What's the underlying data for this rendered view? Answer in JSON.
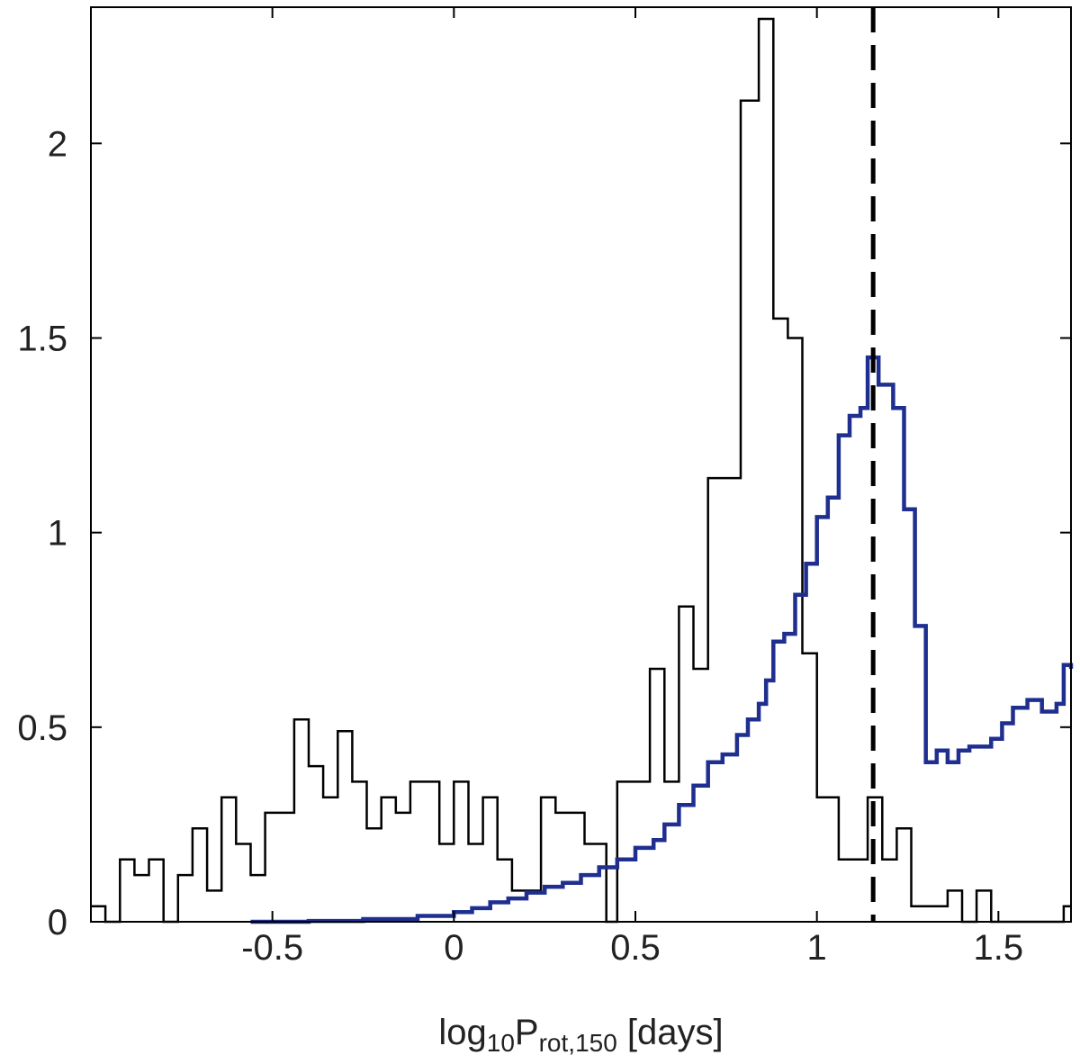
{
  "chart_data": {
    "type": "line",
    "xlabel": {
      "base": "log",
      "base_sub": "10",
      "main": "P",
      "main_sub": "rot,150",
      "unit": " [days]"
    },
    "ylabel": "",
    "xlim": [
      -1.0,
      1.7
    ],
    "ylim": [
      0,
      2.35
    ],
    "x_ticks": [
      {
        "value": -0.5,
        "label": "-0.5"
      },
      {
        "value": 0,
        "label": "0"
      },
      {
        "value": 0.5,
        "label": "0.5"
      },
      {
        "value": 1,
        "label": "1"
      },
      {
        "value": 1.5,
        "label": "1.5"
      }
    ],
    "y_ticks": [
      {
        "value": 0,
        "label": "0"
      },
      {
        "value": 0.5,
        "label": "0.5"
      },
      {
        "value": 1,
        "label": "1"
      },
      {
        "value": 1.5,
        "label": "1.5"
      },
      {
        "value": 2,
        "label": "2"
      }
    ],
    "grid": false,
    "vline": {
      "x": 1.155,
      "style": "dashed",
      "color": "#000000"
    },
    "series": [
      {
        "style": "step",
        "color": "#000000",
        "points": [
          [
            -1.0,
            0.04
          ],
          [
            -0.96,
            0.0
          ],
          [
            -0.92,
            0.16
          ],
          [
            -0.88,
            0.12
          ],
          [
            -0.84,
            0.16
          ],
          [
            -0.8,
            0.0
          ],
          [
            -0.76,
            0.12
          ],
          [
            -0.72,
            0.24
          ],
          [
            -0.68,
            0.08
          ],
          [
            -0.64,
            0.32
          ],
          [
            -0.6,
            0.2
          ],
          [
            -0.56,
            0.12
          ],
          [
            -0.52,
            0.28
          ],
          [
            -0.44,
            0.52
          ],
          [
            -0.4,
            0.4
          ],
          [
            -0.36,
            0.32
          ],
          [
            -0.32,
            0.49
          ],
          [
            -0.28,
            0.36
          ],
          [
            -0.24,
            0.24
          ],
          [
            -0.2,
            0.32
          ],
          [
            -0.16,
            0.28
          ],
          [
            -0.12,
            0.36
          ],
          [
            -0.04,
            0.2
          ],
          [
            0.0,
            0.36
          ],
          [
            0.04,
            0.2
          ],
          [
            0.08,
            0.32
          ],
          [
            0.12,
            0.16
          ],
          [
            0.16,
            0.08
          ],
          [
            0.24,
            0.32
          ],
          [
            0.28,
            0.28
          ],
          [
            0.36,
            0.2
          ],
          [
            0.42,
            0.0
          ],
          [
            0.45,
            0.36
          ],
          [
            0.54,
            0.65
          ],
          [
            0.58,
            0.36
          ],
          [
            0.62,
            0.81
          ],
          [
            0.66,
            0.65
          ],
          [
            0.7,
            1.14
          ],
          [
            0.79,
            2.11
          ],
          [
            0.84,
            2.32
          ],
          [
            0.88,
            1.55
          ],
          [
            0.92,
            1.5
          ],
          [
            0.96,
            0.69
          ],
          [
            1.0,
            0.32
          ],
          [
            1.06,
            0.16
          ],
          [
            1.14,
            0.32
          ],
          [
            1.18,
            0.16
          ],
          [
            1.22,
            0.24
          ],
          [
            1.26,
            0.04
          ],
          [
            1.36,
            0.08
          ],
          [
            1.4,
            0.0
          ],
          [
            1.44,
            0.08
          ],
          [
            1.48,
            0.0
          ],
          [
            1.68,
            0.04
          ],
          [
            1.7,
            0.04
          ]
        ]
      },
      {
        "style": "step",
        "color": "#1f2f8f",
        "points": [
          [
            -0.56,
            0.0
          ],
          [
            -0.4,
            0.002
          ],
          [
            -0.25,
            0.007
          ],
          [
            -0.1,
            0.015
          ],
          [
            0.0,
            0.025
          ],
          [
            0.05,
            0.035
          ],
          [
            0.1,
            0.05
          ],
          [
            0.15,
            0.06
          ],
          [
            0.2,
            0.075
          ],
          [
            0.25,
            0.09
          ],
          [
            0.3,
            0.1
          ],
          [
            0.35,
            0.12
          ],
          [
            0.4,
            0.14
          ],
          [
            0.45,
            0.16
          ],
          [
            0.5,
            0.19
          ],
          [
            0.55,
            0.21
          ],
          [
            0.58,
            0.25
          ],
          [
            0.62,
            0.3
          ],
          [
            0.66,
            0.35
          ],
          [
            0.7,
            0.41
          ],
          [
            0.74,
            0.43
          ],
          [
            0.78,
            0.48
          ],
          [
            0.81,
            0.52
          ],
          [
            0.84,
            0.56
          ],
          [
            0.86,
            0.62
          ],
          [
            0.88,
            0.72
          ],
          [
            0.91,
            0.74
          ],
          [
            0.94,
            0.84
          ],
          [
            0.97,
            0.92
          ],
          [
            1.0,
            1.04
          ],
          [
            1.03,
            1.09
          ],
          [
            1.06,
            1.25
          ],
          [
            1.09,
            1.3
          ],
          [
            1.12,
            1.32
          ],
          [
            1.14,
            1.45
          ],
          [
            1.17,
            1.38
          ],
          [
            1.21,
            1.32
          ],
          [
            1.24,
            1.06
          ],
          [
            1.27,
            0.76
          ],
          [
            1.3,
            0.41
          ],
          [
            1.33,
            0.44
          ],
          [
            1.36,
            0.41
          ],
          [
            1.39,
            0.44
          ],
          [
            1.42,
            0.45
          ],
          [
            1.48,
            0.47
          ],
          [
            1.51,
            0.51
          ],
          [
            1.54,
            0.55
          ],
          [
            1.58,
            0.57
          ],
          [
            1.62,
            0.54
          ],
          [
            1.66,
            0.56
          ],
          [
            1.68,
            0.66
          ],
          [
            1.7,
            0.65
          ]
        ]
      }
    ]
  }
}
